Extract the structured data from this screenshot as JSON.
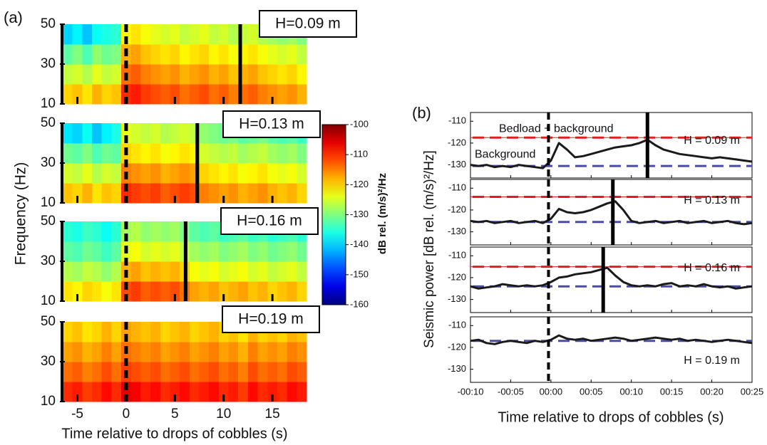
{
  "chart_data": [
    {
      "type": "heatmap",
      "panel_label": "(a)",
      "ylabel": "Frequency (Hz)",
      "annotation": "H=0.09 m",
      "colorbar": {
        "label": "dB rel. (m/s)²/Hz",
        "lim": [
          -160,
          -100
        ],
        "ticks": [
          -100,
          -110,
          -120,
          -130,
          -140,
          -150,
          -160
        ]
      },
      "xlim": [
        -6.5,
        18.5
      ],
      "ylim": [
        10,
        50
      ],
      "xticks": [
        -5,
        0,
        5,
        10,
        15
      ],
      "yticks": [
        10,
        30,
        50
      ],
      "x_bins": [
        -6.5,
        -5.5,
        -4.5,
        -3.5,
        -2.5,
        -1.5,
        -0.5,
        0.5,
        1.5,
        2.5,
        3.5,
        4.5,
        5.5,
        6.5,
        7.5,
        8.5,
        9.5,
        10.5,
        11.5,
        12.5,
        13.5,
        14.5,
        15.5,
        16.5,
        17.5,
        18.5
      ],
      "y_bins": [
        10,
        20,
        30,
        40,
        50
      ],
      "drop_time": 0,
      "end_time": 11.7,
      "values": [
        [
          -120,
          -119,
          -121,
          -118,
          -120,
          -119,
          -110,
          -109,
          -111,
          -112,
          -113,
          -112,
          -114,
          -113,
          -112,
          -114,
          -113,
          -115,
          -114,
          -113,
          -115,
          -116,
          -117,
          -116,
          -118
        ],
        [
          -126,
          -125,
          -127,
          -124,
          -126,
          -125,
          -114,
          -113,
          -115,
          -116,
          -117,
          -116,
          -118,
          -117,
          -116,
          -118,
          -117,
          -119,
          -118,
          -117,
          -119,
          -120,
          -121,
          -120,
          -122
        ],
        [
          -132,
          -130,
          -133,
          -129,
          -131,
          -130,
          -118,
          -117,
          -119,
          -120,
          -121,
          -120,
          -122,
          -121,
          -120,
          -122,
          -121,
          -123,
          -122,
          -121,
          -123,
          -124,
          -125,
          -124,
          -126
        ],
        [
          -140,
          -138,
          -141,
          -137,
          -136,
          -135,
          -122,
          -121,
          -123,
          -124,
          -125,
          -124,
          -126,
          -125,
          -124,
          -126,
          -125,
          -127,
          -126,
          -125,
          -127,
          -128,
          -129,
          -128,
          -130
        ]
      ]
    },
    {
      "type": "heatmap",
      "annotation": "H=0.13 m",
      "xlim": [
        -6.5,
        18.5
      ],
      "ylim": [
        10,
        50
      ],
      "xticks": [
        -5,
        0,
        5,
        10,
        15
      ],
      "yticks": [
        10,
        30,
        50
      ],
      "x_bins": [
        -6.5,
        -5.5,
        -4.5,
        -3.5,
        -2.5,
        -1.5,
        -0.5,
        0.5,
        1.5,
        2.5,
        3.5,
        4.5,
        5.5,
        6.5,
        7.5,
        8.5,
        9.5,
        10.5,
        11.5,
        12.5,
        13.5,
        14.5,
        15.5,
        16.5,
        17.5,
        18.5
      ],
      "y_bins": [
        10,
        20,
        30,
        40,
        50
      ],
      "drop_time": 0,
      "end_time": 7.3,
      "values": [
        [
          -119,
          -120,
          -118,
          -121,
          -119,
          -120,
          -110,
          -111,
          -112,
          -111,
          -113,
          -112,
          -111,
          -112,
          -115,
          -116,
          -117,
          -116,
          -118,
          -117,
          -116,
          -118,
          -119,
          -118,
          -120
        ],
        [
          -125,
          -126,
          -124,
          -127,
          -125,
          -126,
          -115,
          -116,
          -117,
          -116,
          -118,
          -117,
          -116,
          -117,
          -120,
          -121,
          -122,
          -121,
          -123,
          -122,
          -121,
          -123,
          -124,
          -123,
          -125
        ],
        [
          -131,
          -132,
          -130,
          -133,
          -131,
          -132,
          -120,
          -121,
          -122,
          -121,
          -123,
          -122,
          -121,
          -122,
          -125,
          -126,
          -127,
          -126,
          -128,
          -127,
          -126,
          -128,
          -129,
          -128,
          -130
        ],
        [
          -139,
          -140,
          -137,
          -141,
          -138,
          -136,
          -124,
          -125,
          -126,
          -125,
          -127,
          -126,
          -125,
          -126,
          -129,
          -130,
          -131,
          -130,
          -132,
          -131,
          -130,
          -132,
          -133,
          -132,
          -134
        ]
      ]
    },
    {
      "type": "heatmap",
      "annotation": "H=0.16 m",
      "xlim": [
        -6.5,
        18.5
      ],
      "ylim": [
        10,
        50
      ],
      "xticks": [
        -5,
        0,
        5,
        10,
        15
      ],
      "yticks": [
        10,
        30,
        50
      ],
      "x_bins": [
        -6.5,
        -5.5,
        -4.5,
        -3.5,
        -2.5,
        -1.5,
        -0.5,
        0.5,
        1.5,
        2.5,
        3.5,
        4.5,
        5.5,
        6.5,
        7.5,
        8.5,
        9.5,
        10.5,
        11.5,
        12.5,
        13.5,
        14.5,
        15.5,
        16.5,
        17.5,
        18.5
      ],
      "y_bins": [
        10,
        20,
        30,
        40,
        50
      ],
      "drop_time": 0,
      "end_time": 6.1,
      "values": [
        [
          -121,
          -122,
          -120,
          -121,
          -123,
          -121,
          -112,
          -111,
          -113,
          -112,
          -113,
          -112,
          -114,
          -117,
          -118,
          -117,
          -119,
          -118,
          -117,
          -119,
          -118,
          -120,
          -119,
          -118,
          -120
        ],
        [
          -127,
          -128,
          -126,
          -127,
          -129,
          -127,
          -118,
          -117,
          -119,
          -118,
          -119,
          -118,
          -120,
          -123,
          -124,
          -123,
          -125,
          -124,
          -123,
          -125,
          -124,
          -126,
          -125,
          -124,
          -126
        ],
        [
          -132,
          -133,
          -131,
          -132,
          -134,
          -132,
          -124,
          -123,
          -125,
          -124,
          -125,
          -124,
          -126,
          -128,
          -129,
          -128,
          -130,
          -129,
          -128,
          -130,
          -129,
          -131,
          -130,
          -129,
          -131
        ],
        [
          -135,
          -136,
          -134,
          -135,
          -137,
          -135,
          -128,
          -127,
          -129,
          -128,
          -129,
          -128,
          -130,
          -132,
          -133,
          -132,
          -134,
          -133,
          -132,
          -134,
          -133,
          -135,
          -134,
          -133,
          -135
        ]
      ]
    },
    {
      "type": "heatmap",
      "annotation": "H=0.19 m",
      "xlabel": "Time relative to drops of cobbles (s)",
      "xlim": [
        -6.5,
        18.5
      ],
      "ylim": [
        10,
        50
      ],
      "xticks": [
        -5,
        0,
        5,
        10,
        15
      ],
      "yticks": [
        10,
        30,
        50
      ],
      "x_bins": [
        -6.5,
        -5.5,
        -4.5,
        -3.5,
        -2.5,
        -1.5,
        -0.5,
        0.5,
        1.5,
        2.5,
        3.5,
        4.5,
        5.5,
        6.5,
        7.5,
        8.5,
        9.5,
        10.5,
        11.5,
        12.5,
        13.5,
        14.5,
        15.5,
        16.5,
        17.5,
        18.5
      ],
      "y_bins": [
        10,
        20,
        30,
        40,
        50
      ],
      "drop_time": 0,
      "values": [
        [
          -110,
          -109,
          -111,
          -110,
          -108,
          -110,
          -106,
          -107,
          -109,
          -108,
          -110,
          -109,
          -108,
          -110,
          -109,
          -108,
          -110,
          -109,
          -111,
          -108,
          -110,
          -109,
          -110,
          -108,
          -109
        ],
        [
          -114,
          -113,
          -115,
          -114,
          -112,
          -114,
          -111,
          -112,
          -113,
          -112,
          -114,
          -113,
          -112,
          -114,
          -113,
          -112,
          -114,
          -113,
          -115,
          -112,
          -114,
          -113,
          -114,
          -112,
          -113
        ],
        [
          -117,
          -116,
          -118,
          -117,
          -115,
          -117,
          -114,
          -115,
          -116,
          -115,
          -117,
          -116,
          -115,
          -117,
          -116,
          -115,
          -117,
          -116,
          -118,
          -115,
          -117,
          -116,
          -117,
          -115,
          -116
        ],
        [
          -120,
          -119,
          -121,
          -120,
          -118,
          -120,
          -117,
          -118,
          -119,
          -118,
          -120,
          -119,
          -118,
          -120,
          -119,
          -118,
          -120,
          -119,
          -121,
          -118,
          -120,
          -119,
          -120,
          -118,
          -119
        ]
      ]
    },
    {
      "type": "line",
      "panel_label": "(b)",
      "ylabel": "Seismic power [dB rel. (m/s)²/Hz]",
      "annotation": "H = 0.09 m",
      "xlim": [
        -10,
        25
      ],
      "ylim": [
        -136,
        -106
      ],
      "yticks": [
        -110,
        -120,
        -130
      ],
      "xticks": [
        {
          "value": -10,
          "label": "-00:10"
        },
        {
          "value": -5,
          "label": "-00:05"
        },
        {
          "value": 0,
          "label": "00:00"
        },
        {
          "value": 5,
          "label": "00:05"
        },
        {
          "value": 10,
          "label": "00:10"
        },
        {
          "value": 15,
          "label": "00:15"
        },
        {
          "value": 20,
          "label": "00:20"
        },
        {
          "value": 25,
          "label": "00:25"
        }
      ],
      "drop_time": -0.3,
      "end_time": 12,
      "reference_lines": [
        {
          "label": "Bedload + background",
          "value": -117.5,
          "color": "#e01e1e"
        },
        {
          "label": "Background",
          "value": -130.5,
          "color": "#4b4ba6"
        }
      ],
      "x": [
        -10,
        -9,
        -8,
        -7,
        -6,
        -5,
        -4,
        -3,
        -2,
        -1,
        0,
        1,
        2,
        3,
        4,
        5,
        6,
        7,
        8,
        9,
        10,
        11,
        12,
        13,
        14,
        15,
        16,
        17,
        18,
        19,
        20,
        21,
        22,
        23,
        24,
        25
      ],
      "series": [
        {
          "color": "#1a1a1a",
          "values": [
            -130,
            -130.5,
            -130,
            -131,
            -130.5,
            -131,
            -130,
            -130.5,
            -131,
            -131.5,
            -128,
            -120,
            -123,
            -126.5,
            -126,
            -125,
            -124,
            -123,
            -122,
            -121.5,
            -121,
            -120,
            -118.5,
            -121,
            -123,
            -124,
            -125,
            -125.5,
            -126,
            -126.5,
            -127,
            -126.5,
            -127,
            -127.5,
            -128,
            -128.5
          ]
        }
      ]
    },
    {
      "type": "line",
      "annotation": "H = 0.13 m",
      "xlim": [
        -10,
        25
      ],
      "ylim": [
        -136,
        -106
      ],
      "yticks": [
        -110,
        -120,
        -130
      ],
      "xticks": [
        -10,
        -5,
        0,
        5,
        10,
        15,
        20,
        25
      ],
      "drop_time": -0.3,
      "end_time": 7.7,
      "reference_lines": [
        {
          "value": -114,
          "color": "#e01e1e"
        },
        {
          "value": -125.5,
          "color": "#4b4ba6"
        }
      ],
      "x": [
        -10,
        -9,
        -8,
        -7,
        -6,
        -5,
        -4,
        -3,
        -2,
        -1,
        0,
        1,
        2,
        3,
        4,
        5,
        6,
        7,
        8,
        9,
        10,
        11,
        12,
        13,
        14,
        15,
        16,
        17,
        18,
        19,
        20,
        21,
        22,
        23,
        24,
        25
      ],
      "series": [
        {
          "color": "#1a1a1a",
          "values": [
            -125,
            -125.5,
            -125,
            -126,
            -125.5,
            -125,
            -126,
            -125.5,
            -125,
            -126,
            -124,
            -119.5,
            -121,
            -121.5,
            -121,
            -120,
            -118.5,
            -117,
            -116,
            -120,
            -125,
            -126,
            -125.5,
            -125,
            -126,
            -125.5,
            -125,
            -126,
            -125.5,
            -125,
            -126,
            -125.5,
            -125,
            -126,
            -126.5,
            -126
          ]
        }
      ]
    },
    {
      "type": "line",
      "annotation": "H = 0.16 m",
      "xlim": [
        -10,
        25
      ],
      "ylim": [
        -136,
        -106
      ],
      "yticks": [
        -110,
        -120,
        -130
      ],
      "xticks": [
        -10,
        -5,
        0,
        5,
        10,
        15,
        20,
        25
      ],
      "drop_time": -0.3,
      "end_time": 6.5,
      "reference_lines": [
        {
          "value": -115,
          "color": "#e01e1e"
        },
        {
          "value": -124,
          "color": "#4b4ba6"
        }
      ],
      "x": [
        -10,
        -9,
        -8,
        -7,
        -6,
        -5,
        -4,
        -3,
        -2,
        -1,
        0,
        1,
        2,
        3,
        4,
        5,
        6,
        7,
        8,
        9,
        10,
        11,
        12,
        13,
        14,
        15,
        16,
        17,
        18,
        19,
        20,
        21,
        22,
        23,
        24,
        25
      ],
      "series": [
        {
          "color": "#1a1a1a",
          "values": [
            -124,
            -125,
            -124.5,
            -124,
            -123,
            -123.5,
            -124,
            -123.5,
            -124,
            -123.5,
            -122,
            -120,
            -119.5,
            -118.5,
            -118,
            -117.5,
            -116.5,
            -115.5,
            -119,
            -122,
            -123.5,
            -124,
            -123.5,
            -124,
            -123,
            -122.5,
            -124,
            -123.5,
            -124,
            -123,
            -124,
            -124.5,
            -124,
            -125,
            -124.5,
            -124
          ]
        }
      ]
    },
    {
      "type": "line",
      "annotation": "H = 0.19 m",
      "xlabel": "Time relative to drops of cobbles (s)",
      "xlim": [
        -10,
        25
      ],
      "ylim": [
        -136,
        -106
      ],
      "yticks": [
        -110,
        -120,
        -130
      ],
      "xticks": [
        {
          "value": -10,
          "label": "-00:10"
        },
        {
          "value": -5,
          "label": "-00:05"
        },
        {
          "value": 0,
          "label": "00:00"
        },
        {
          "value": 5,
          "label": "00:05"
        },
        {
          "value": 10,
          "label": "00:10"
        },
        {
          "value": 15,
          "label": "00:15"
        },
        {
          "value": 20,
          "label": "00:20"
        },
        {
          "value": 25,
          "label": "00:25"
        }
      ],
      "drop_time": -0.3,
      "reference_lines": [
        {
          "value": -117,
          "color": "#4b4ba6"
        }
      ],
      "x": [
        -10,
        -9,
        -8,
        -7,
        -6,
        -5,
        -4,
        -3,
        -2,
        -1,
        0,
        1,
        2,
        3,
        4,
        5,
        6,
        7,
        8,
        9,
        10,
        11,
        12,
        13,
        14,
        15,
        16,
        17,
        18,
        19,
        20,
        21,
        22,
        23,
        24,
        25
      ],
      "series": [
        {
          "color": "#1a1a1a",
          "values": [
            -117,
            -116.5,
            -118,
            -118.5,
            -117.5,
            -117,
            -117.5,
            -118,
            -117,
            -117.5,
            -116.5,
            -114.5,
            -116,
            -116.5,
            -116,
            -117,
            -116.5,
            -116,
            -115.5,
            -116,
            -117,
            -116.5,
            -116,
            -115.5,
            -116,
            -116.5,
            -116,
            -117,
            -116.5,
            -117,
            -117.5,
            -117,
            -116.5,
            -117,
            -117.5,
            -118
          ]
        }
      ]
    }
  ]
}
